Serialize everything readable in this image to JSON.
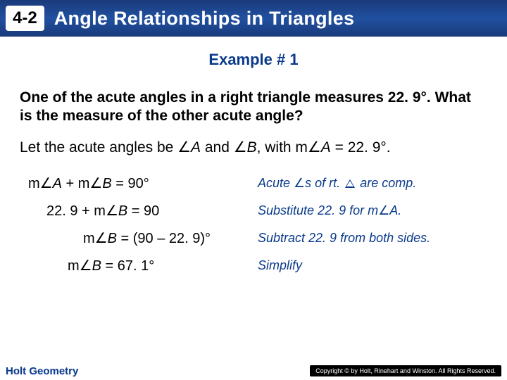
{
  "header": {
    "section_number": "4-2",
    "title": "Angle Relationships in Triangles"
  },
  "subtitle": "Example # 1",
  "question": "One of the acute angles in a right triangle measures 22. 9°. What is the measure of the other acute angle?",
  "let_line_pre": "Let the acute angles be ",
  "let_line_A": "A",
  "let_line_and": " and ",
  "let_line_B": "B",
  "let_line_with": ", with m",
  "let_line_eqA": "A",
  "let_line_val": " = 22. 9°.",
  "steps": [
    {
      "eq_class": "indent0",
      "eq_pre": "m",
      "eq_a": "A",
      "eq_mid": " + m",
      "eq_b": "B",
      "eq_post": " = 90°",
      "reason_pre": "Acute ",
      "reason_mid": "s of rt. ",
      "reason_post": " are comp.",
      "reason_has_tri": true
    },
    {
      "eq_class": "indent1",
      "eq_plain": "22. 9 + m",
      "eq_b": "B",
      "eq_post": " = 90",
      "reason_full": "Substitute 22. 9 for m",
      "reason_ang": "A.",
      "reason_has_tri": false
    },
    {
      "eq_class": "indent2",
      "eq_plain2a": "m",
      "eq_b": "B",
      "eq_post": " = (90 – 22. 9)°",
      "reason_full2": "Subtract 22. 9 from both sides."
    },
    {
      "eq_class": "indent3",
      "eq_plain2a": "m",
      "eq_b": "B",
      "eq_post": " = 67. 1°",
      "reason_full2": "Simplify"
    }
  ],
  "footer": {
    "brand": "Holt Geometry",
    "copyright": "Copyright © by Holt, Rinehart and Winston. All Rights Reserved."
  },
  "colors": {
    "header_bg": "#1a3a7a",
    "accent": "#0a3a8a",
    "text": "#000000"
  }
}
